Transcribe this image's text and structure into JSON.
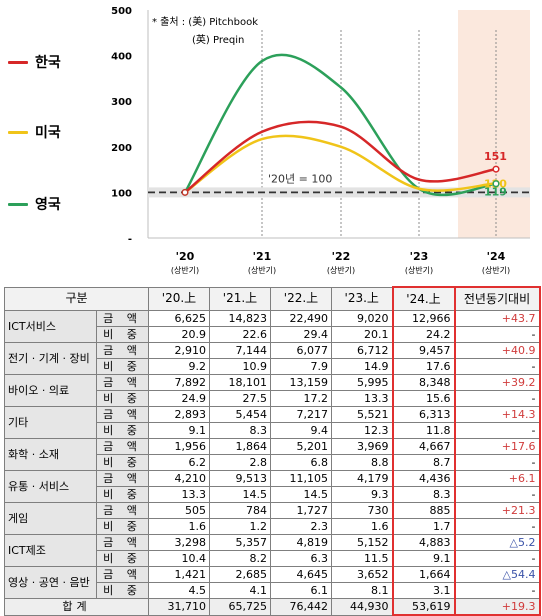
{
  "chart_data": {
    "type": "line",
    "categories": [
      "'20",
      "'21",
      "'22",
      "'23",
      "'24"
    ],
    "category_sublabel": "(상반기)",
    "y_ticks": [
      "500",
      "400",
      "300",
      "200",
      "100",
      "-"
    ],
    "ylim": [
      0,
      500
    ],
    "baseline_label": "'20년 = 100",
    "baseline_value": 100,
    "highlight_category": "'24",
    "source_note": [
      "* 출처 : (美) Pitchbook",
      "(英) Preqin"
    ],
    "series": [
      {
        "name": "한국",
        "color": "#d62728",
        "values": [
          100,
          233,
          244,
          128,
          151
        ],
        "end_label": "151"
      },
      {
        "name": "미국",
        "color": "#f0c419",
        "values": [
          100,
          217,
          200,
          108,
          120
        ],
        "end_label": "120"
      },
      {
        "name": "영국",
        "color": "#2ca05a",
        "values": [
          100,
          388,
          330,
          108,
          119
        ],
        "end_label": "119"
      }
    ]
  },
  "table": {
    "header": {
      "group": "구분",
      "periods": [
        "'20.上",
        "'21.上",
        "'22.上",
        "'23.上",
        "'24.上"
      ],
      "yoy": "전년동기대비"
    },
    "metric_labels": {
      "amount": "금 액",
      "share": "비 중"
    },
    "rows": [
      {
        "name": "ICT서비스",
        "amount": [
          "6,625",
          "14,823",
          "22,490",
          "9,020",
          "12,966"
        ],
        "share": [
          "20.9",
          "22.6",
          "29.4",
          "20.1",
          "24.2"
        ],
        "yoy": "+43.7",
        "yoy_share": "-",
        "yoy_dir": "up"
      },
      {
        "name": "전기 · 기계 · 장비",
        "amount": [
          "2,910",
          "7,144",
          "6,077",
          "6,712",
          "9,457"
        ],
        "share": [
          "9.2",
          "10.9",
          "7.9",
          "14.9",
          "17.6"
        ],
        "yoy": "+40.9",
        "yoy_share": "-",
        "yoy_dir": "up"
      },
      {
        "name": "바이오 · 의료",
        "amount": [
          "7,892",
          "18,101",
          "13,159",
          "5,995",
          "8,348"
        ],
        "share": [
          "24.9",
          "27.5",
          "17.2",
          "13.3",
          "15.6"
        ],
        "yoy": "+39.2",
        "yoy_share": "-",
        "yoy_dir": "up"
      },
      {
        "name": "기타",
        "amount": [
          "2,893",
          "5,454",
          "7,217",
          "5,521",
          "6,313"
        ],
        "share": [
          "9.1",
          "8.3",
          "9.4",
          "12.3",
          "11.8"
        ],
        "yoy": "+14.3",
        "yoy_share": "-",
        "yoy_dir": "up"
      },
      {
        "name": "화학 · 소재",
        "amount": [
          "1,956",
          "1,864",
          "5,201",
          "3,969",
          "4,667"
        ],
        "share": [
          "6.2",
          "2.8",
          "6.8",
          "8.8",
          "8.7"
        ],
        "yoy": "+17.6",
        "yoy_share": "-",
        "yoy_dir": "up"
      },
      {
        "name": "유통 · 서비스",
        "amount": [
          "4,210",
          "9,513",
          "11,105",
          "4,179",
          "4,436"
        ],
        "share": [
          "13.3",
          "14.5",
          "14.5",
          "9.3",
          "8.3"
        ],
        "yoy": "+6.1",
        "yoy_share": "-",
        "yoy_dir": "up"
      },
      {
        "name": "게임",
        "amount": [
          "505",
          "784",
          "1,727",
          "730",
          "885"
        ],
        "share": [
          "1.6",
          "1.2",
          "2.3",
          "1.6",
          "1.7"
        ],
        "yoy": "+21.3",
        "yoy_share": "-",
        "yoy_dir": "up"
      },
      {
        "name": "ICT제조",
        "amount": [
          "3,298",
          "5,357",
          "4,819",
          "5,152",
          "4,883"
        ],
        "share": [
          "10.4",
          "8.2",
          "6.3",
          "11.5",
          "9.1"
        ],
        "yoy": "△5.2",
        "yoy_share": "-",
        "yoy_dir": "down"
      },
      {
        "name": "영상 · 공연 · 음반",
        "amount": [
          "1,421",
          "2,685",
          "4,645",
          "3,652",
          "1,664"
        ],
        "share": [
          "4.5",
          "4.1",
          "6.1",
          "8.1",
          "3.1"
        ],
        "yoy": "△54.4",
        "yoy_share": "-",
        "yoy_dir": "down"
      }
    ],
    "total": {
      "label": "합계",
      "values": [
        "31,710",
        "65,725",
        "76,442",
        "44,930",
        "53,619"
      ],
      "yoy": "+19.3"
    }
  }
}
